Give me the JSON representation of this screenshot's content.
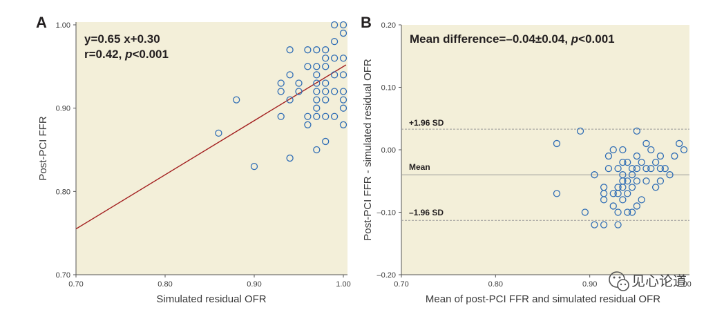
{
  "panel_a": {
    "label": "A",
    "equation": "y=0.65 x+0.30",
    "correlation_prefix": "r=0.42, ",
    "p_letter": "p",
    "p_rest": "<0.001"
  },
  "panel_b": {
    "label": "B",
    "mean_diff_prefix": "Mean difference=–",
    "mean_diff_value": "0.04±0.04, ",
    "p_letter": "p",
    "p_rest": "<0.001",
    "upper_label": "+1.96 SD",
    "mean_label": "Mean",
    "lower_label": "–1.96 SD"
  },
  "watermark": {
    "text": "见心论道",
    "icon": "wechat-icon"
  },
  "colors": {
    "plot_bg": "#f3efd9",
    "marker": "#2f6db5",
    "regression": "#a32020",
    "axis": "#555555"
  },
  "chart_data": [
    {
      "type": "scatter",
      "title": "",
      "xlabel": "Simulated residual OFR",
      "ylabel": "Post-PCI FFR",
      "xlim": [
        0.7,
        1.0
      ],
      "ylim": [
        0.7,
        1.0
      ],
      "xticks": [
        "0.70",
        "0.80",
        "0.90",
        "1.00"
      ],
      "yticks": [
        "0.70",
        "0.80",
        "0.90",
        "1.00"
      ],
      "regression": {
        "slope": 0.65,
        "intercept": 0.3
      },
      "x": [
        0.86,
        0.88,
        0.9,
        0.93,
        0.93,
        0.93,
        0.94,
        0.94,
        0.94,
        0.94,
        0.95,
        0.95,
        0.96,
        0.96,
        0.96,
        0.96,
        0.97,
        0.97,
        0.97,
        0.97,
        0.97,
        0.97,
        0.97,
        0.97,
        0.97,
        0.98,
        0.98,
        0.98,
        0.98,
        0.98,
        0.98,
        0.98,
        0.98,
        0.99,
        0.99,
        0.99,
        0.99,
        0.99,
        0.99,
        1.0,
        1.0,
        1.0,
        1.0,
        1.0,
        1.0,
        1.0,
        1.0
      ],
      "y": [
        0.87,
        0.91,
        0.83,
        0.93,
        0.92,
        0.89,
        0.97,
        0.94,
        0.91,
        0.84,
        0.93,
        0.92,
        0.97,
        0.95,
        0.89,
        0.88,
        0.97,
        0.95,
        0.94,
        0.93,
        0.92,
        0.91,
        0.9,
        0.89,
        0.85,
        0.97,
        0.96,
        0.95,
        0.93,
        0.92,
        0.91,
        0.89,
        0.86,
        1.0,
        0.98,
        0.96,
        0.94,
        0.92,
        0.89,
        1.0,
        0.99,
        0.96,
        0.94,
        0.92,
        0.91,
        0.9,
        0.88
      ]
    },
    {
      "type": "scatter",
      "title": "",
      "xlabel": "Mean of post-PCI FFR and simulated residual OFR",
      "ylabel": "Post-PCI FFR - simulated residual OFR",
      "xlim": [
        0.7,
        1.0
      ],
      "ylim": [
        -0.2,
        0.2
      ],
      "xticks": [
        "0.70",
        "0.80",
        "0.90",
        "1.00"
      ],
      "yticks": [
        "-0.20",
        "-0.10",
        "0.00",
        "0.10",
        "0.20"
      ],
      "mean_line": -0.04,
      "upper_limit": 0.033,
      "lower_limit": -0.113,
      "x": [
        0.865,
        0.865,
        0.89,
        0.895,
        0.905,
        0.905,
        0.915,
        0.915,
        0.915,
        0.915,
        0.92,
        0.92,
        0.925,
        0.925,
        0.925,
        0.93,
        0.93,
        0.93,
        0.93,
        0.93,
        0.935,
        0.935,
        0.935,
        0.935,
        0.935,
        0.935,
        0.94,
        0.94,
        0.94,
        0.94,
        0.945,
        0.945,
        0.945,
        0.945,
        0.95,
        0.95,
        0.95,
        0.95,
        0.95,
        0.955,
        0.955,
        0.96,
        0.96,
        0.96,
        0.965,
        0.965,
        0.97,
        0.97,
        0.975,
        0.975,
        0.975,
        0.98,
        0.985,
        0.99,
        0.995,
        1.0
      ],
      "y": [
        0.01,
        -0.07,
        0.03,
        -0.1,
        -0.04,
        -0.12,
        -0.06,
        -0.08,
        -0.12,
        -0.07,
        -0.01,
        -0.03,
        0.0,
        -0.07,
        -0.09,
        -0.03,
        -0.07,
        -0.1,
        -0.12,
        -0.06,
        0.0,
        -0.02,
        -0.04,
        -0.06,
        -0.08,
        -0.05,
        -0.05,
        -0.07,
        -0.1,
        -0.02,
        -0.04,
        -0.06,
        -0.1,
        -0.03,
        -0.01,
        -0.03,
        -0.05,
        -0.09,
        0.03,
        -0.02,
        -0.08,
        -0.03,
        -0.05,
        0.01,
        -0.03,
        0.0,
        -0.02,
        -0.06,
        -0.01,
        -0.03,
        -0.05,
        -0.03,
        -0.04,
        -0.01,
        0.01,
        0.0
      ]
    }
  ]
}
